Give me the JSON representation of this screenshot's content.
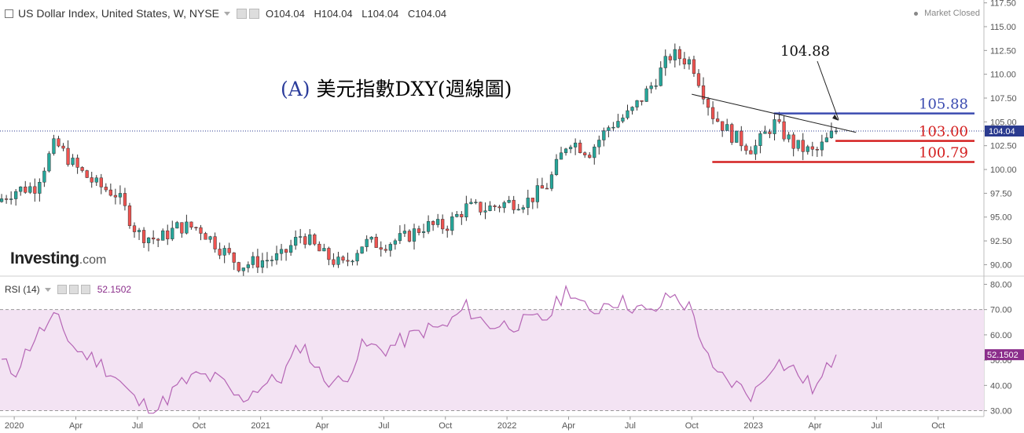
{
  "header": {
    "symbol_title": "US Dollar Index, United States, W, NYSE",
    "open": "O104.04",
    "high": "H104.04",
    "low": "L104.04",
    "close": "C104.04",
    "status": "Market Closed"
  },
  "rsi_header": {
    "label": "RSI (14)",
    "value": "52.1502"
  },
  "logo": {
    "main": "Investing",
    "suffix": ".com"
  },
  "annotation": {
    "prefix": "(A)",
    "text": "美元指數DXY(週線圖)"
  },
  "colors": {
    "up": "#26a69a",
    "down": "#ef5350",
    "rsi_line": "#b565b5",
    "rsi_band": "#f3e3f3",
    "blue_level": "#3b4bb0",
    "red_level": "#d42020",
    "price_tag": "#2a3a8f",
    "rsi_tag": "#8b2e8b"
  },
  "chart_data": [
    {
      "type": "candlestick",
      "title": "US Dollar Index, United States, W, NYSE",
      "x_tick_labels": [
        "2020",
        "Apr",
        "Jul",
        "Oct",
        "2021",
        "Apr",
        "Jul",
        "Oct",
        "2022",
        "Apr",
        "Jul",
        "Oct",
        "2023",
        "Apr",
        "Jul",
        "Oct"
      ],
      "x_ticks": [
        "2020-01",
        "2020-04",
        "2020-07",
        "2020-10",
        "2021-01",
        "2021-04",
        "2021-07",
        "2021-10",
        "2022-01",
        "2022-04",
        "2022-07",
        "2022-10",
        "2023-01",
        "2023-04",
        "2023-07",
        "2023-10"
      ],
      "y_ticks": [
        90.0,
        92.5,
        95.0,
        97.5,
        100.0,
        102.5,
        105.0,
        107.5,
        110.0,
        112.5,
        115.0,
        117.5
      ],
      "ylim": [
        88.8,
        117.8
      ],
      "x_range": [
        "2019-12",
        "2023-12"
      ],
      "last_price": "104.04",
      "close_path": [
        [
          "2019-11",
          97.6
        ],
        [
          "2019-12",
          96.4
        ],
        [
          "2020-01",
          97.8
        ],
        [
          "2020-02",
          98.2
        ],
        [
          "2020-03",
          102.8
        ],
        [
          "2020-04",
          100.2
        ],
        [
          "2020-05",
          98.4
        ],
        [
          "2020-06",
          97.4
        ],
        [
          "2020-07",
          93.3
        ],
        [
          "2020-08",
          92.6
        ],
        [
          "2020-09",
          94.0
        ],
        [
          "2020-10",
          93.9
        ],
        [
          "2020-11",
          91.8
        ],
        [
          "2020-12",
          89.9
        ],
        [
          "2021-01",
          90.4
        ],
        [
          "2021-02",
          90.8
        ],
        [
          "2021-03",
          93.2
        ],
        [
          "2021-04",
          91.1
        ],
        [
          "2021-05",
          89.9
        ],
        [
          "2021-06",
          92.3
        ],
        [
          "2021-07",
          92.2
        ],
        [
          "2021-08",
          92.8
        ],
        [
          "2021-09",
          94.1
        ],
        [
          "2021-10",
          94.0
        ],
        [
          "2021-11",
          96.0
        ],
        [
          "2021-12",
          95.9
        ],
        [
          "2022-01",
          96.5
        ],
        [
          "2022-02",
          96.7
        ],
        [
          "2022-03",
          98.4
        ],
        [
          "2022-04",
          103.2
        ],
        [
          "2022-05",
          101.8
        ],
        [
          "2022-06",
          104.6
        ],
        [
          "2022-07",
          105.9
        ],
        [
          "2022-08",
          108.7
        ],
        [
          "2022-09",
          112.1
        ],
        [
          "2022-10",
          111.3
        ],
        [
          "2022-11",
          105.8
        ],
        [
          "2022-12",
          103.5
        ],
        [
          "2023-01",
          102.1
        ],
        [
          "2023-02",
          104.9
        ],
        [
          "2023-03",
          102.5
        ],
        [
          "2023-04",
          101.7
        ],
        [
          "2023-05",
          104.04
        ]
      ],
      "annotations": [
        "104.88"
      ],
      "levels": [
        {
          "label": "105.88",
          "value": 105.88,
          "from": "2023-02",
          "to": "2023-12"
        },
        {
          "label": "103.00",
          "value": 103.0,
          "from": "2023-05",
          "to": "2023-12"
        },
        {
          "label": "100.79",
          "value": 100.79,
          "from": "2022-11",
          "to": "2023-12"
        }
      ],
      "trendline": {
        "from": [
          "2022-10",
          107.9
        ],
        "to": [
          "2023-06",
          103.9
        ]
      }
    },
    {
      "type": "line",
      "title": "RSI (14)",
      "y_ticks": [
        30.0,
        40.0,
        50.0,
        60.0,
        70.0,
        80.0
      ],
      "ylim": [
        28.0,
        82.0
      ],
      "band": [
        30,
        70
      ],
      "last_value": "52.1502",
      "series": [
        {
          "points": [
            [
              "2019-11",
              47
            ],
            [
              "2019-12",
              52
            ],
            [
              "2020-01",
              45
            ],
            [
              "2020-02",
              59
            ],
            [
              "2020-03",
              67
            ],
            [
              "2020-04",
              54
            ],
            [
              "2020-05",
              50
            ],
            [
              "2020-06",
              43
            ],
            [
              "2020-07",
              33
            ],
            [
              "2020-08",
              31
            ],
            [
              "2020-09",
              40
            ],
            [
              "2020-10",
              44
            ],
            [
              "2020-11",
              42
            ],
            [
              "2020-12",
              34
            ],
            [
              "2021-01",
              40
            ],
            [
              "2021-02",
              43
            ],
            [
              "2021-03",
              57
            ],
            [
              "2021-04",
              43
            ],
            [
              "2021-05",
              41
            ],
            [
              "2021-06",
              56
            ],
            [
              "2021-07",
              54
            ],
            [
              "2021-08",
              58
            ],
            [
              "2021-09",
              62
            ],
            [
              "2021-10",
              63
            ],
            [
              "2021-11",
              71
            ],
            [
              "2021-12",
              64
            ],
            [
              "2022-01",
              64
            ],
            [
              "2022-02",
              65
            ],
            [
              "2022-03",
              67
            ],
            [
              "2022-04",
              79
            ],
            [
              "2022-05",
              68
            ],
            [
              "2022-06",
              74
            ],
            [
              "2022-07",
              72
            ],
            [
              "2022-08",
              68
            ],
            [
              "2022-09",
              76
            ],
            [
              "2022-10",
              70
            ],
            [
              "2022-11",
              45
            ],
            [
              "2022-12",
              41
            ],
            [
              "2023-01",
              36
            ],
            [
              "2023-02",
              50
            ],
            [
              "2023-03",
              46
            ],
            [
              "2023-04",
              38
            ],
            [
              "2023-05",
              52.15
            ]
          ]
        }
      ]
    }
  ]
}
